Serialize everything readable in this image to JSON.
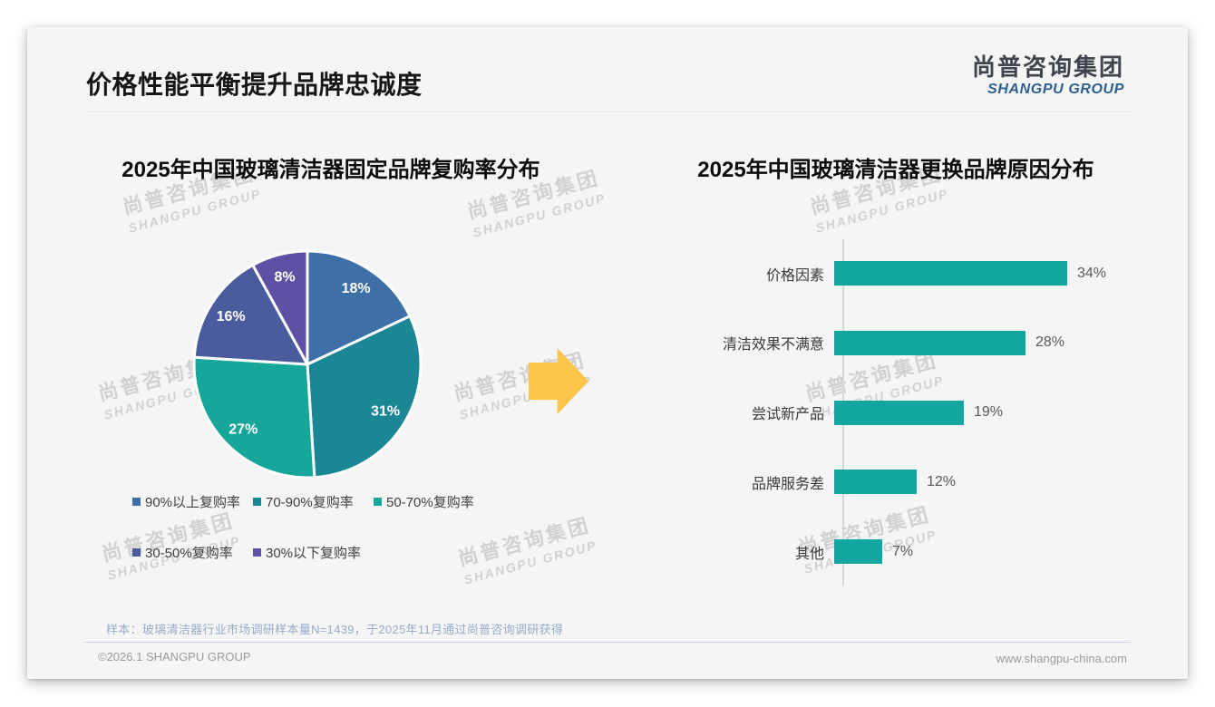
{
  "header": {
    "title": "价格性能平衡提升品牌忠诚度"
  },
  "logo": {
    "cn": "尚普咨询集团",
    "en": "SHANGPU GROUP"
  },
  "watermark": {
    "line1": "尚普咨询集团",
    "line2": "SHANGPU GROUP"
  },
  "arrow": {
    "icon": "right-arrow-icon",
    "color": "#FBC44B"
  },
  "footnote": "样本：玻璃清洁器行业市场调研样本量N=1439，于2025年11月通过尚普咨询调研获得",
  "footer": {
    "left": "©2026.1 SHANGPU GROUP",
    "right": "www.shangpu-china.com"
  },
  "chart_data": [
    {
      "type": "pie",
      "title": "2025年中国玻璃清洁器固定品牌复购率分布",
      "labels": [
        "90%以上复购率",
        "70-90%复购率",
        "50-70%复购率",
        "30-50%复购率",
        "30%以下复购率"
      ],
      "values": [
        18,
        31,
        27,
        16,
        8
      ],
      "data_labels": [
        "18%",
        "31%",
        "27%",
        "16%",
        "8%"
      ],
      "colors": [
        "#3E6FA6",
        "#1B8694",
        "#17A79A",
        "#4A5C9E",
        "#5E51A5"
      ],
      "start_angle_deg": 0,
      "direction": "clockwise",
      "legend_position": "bottom",
      "slice_border_color": "#ffffff"
    },
    {
      "type": "bar",
      "orientation": "horizontal",
      "title": "2025年中国玻璃清洁器更换品牌原因分布",
      "categories": [
        "价格因素",
        "清洁效果不满意",
        "尝试新产品",
        "品牌服务差",
        "其他"
      ],
      "values": [
        34,
        28,
        19,
        12,
        7
      ],
      "value_labels": [
        "34%",
        "28%",
        "19%",
        "12%",
        "7%"
      ],
      "bar_color": "#12A79E",
      "xlim": [
        0,
        36
      ],
      "gridlines": false,
      "axis_line_color": "#d8d8d8"
    }
  ]
}
